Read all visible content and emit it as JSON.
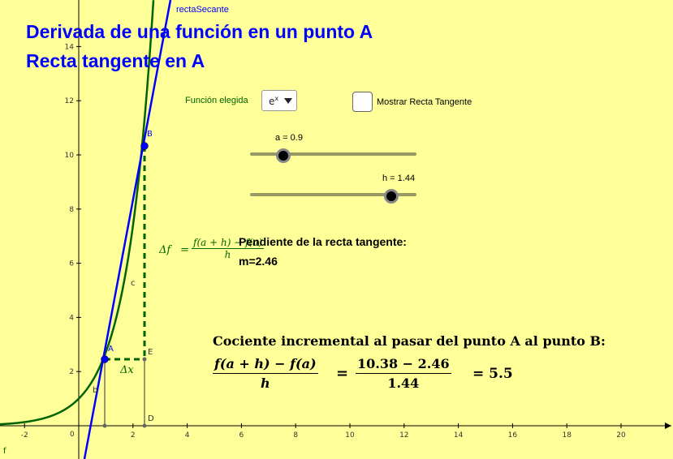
{
  "titles": {
    "line1": "Derivada de una función en un punto A",
    "line2": "Recta tangente en A"
  },
  "function_selector": {
    "label": "Función elegida",
    "selected_base": "e",
    "selected_exp": "x"
  },
  "tangent_toggle": {
    "label": "Mostrar Recta Tangente",
    "checked": false
  },
  "sliders": {
    "a": {
      "label": "a = 0.9",
      "value": 0.9,
      "fraction": 0.2
    },
    "h": {
      "label": "h = 1.44",
      "value": 1.44,
      "fraction": 0.85
    }
  },
  "slope": {
    "title": "Pendiente de la recta tangente:",
    "value": "m=2.46"
  },
  "quotient": {
    "title": "Cociente incremental al pasar del punto A al punto B:",
    "num_expr": "f(a + h) − f(a)",
    "den_expr": "h",
    "num_value": "10.38 − 2.46",
    "den_value": "1.44",
    "eq": "=",
    "result": "= 5.5"
  },
  "annotations": {
    "delta_f_lhs": "Δf",
    "delta_f_eq": "=",
    "delta_f_num": "f(a + h) − f(a)",
    "delta_f_den": "h",
    "delta_x": "Δx"
  },
  "graph": {
    "secant_label": "rectaSecante",
    "function_label": "f",
    "point_labels": {
      "A": "A",
      "B": "B",
      "D": "D",
      "E": "E",
      "b": "b",
      "c": "c"
    },
    "points": {
      "A": [
        0.9,
        2.46
      ],
      "B": [
        2.34,
        10.38
      ]
    },
    "x_ticks": [
      "-2",
      "2",
      "4",
      "6",
      "8",
      "10",
      "12",
      "14",
      "16",
      "18",
      "20"
    ],
    "y_ticks": [
      "2",
      "4",
      "6",
      "8",
      "10",
      "12",
      "14"
    ],
    "origin_label": "0",
    "colors": {
      "background": "#ffff99",
      "function": "#006400",
      "secant": "#0000ff",
      "increment": "#006400",
      "points": "#0000ff"
    }
  }
}
